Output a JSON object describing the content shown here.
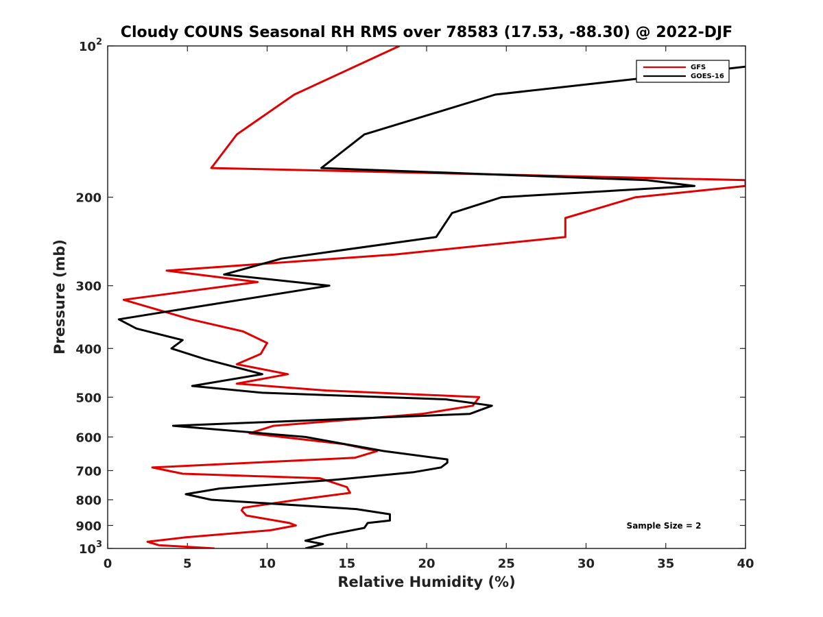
{
  "chart_data": {
    "type": "line",
    "title": "Cloudy COUNS Seasonal RH RMS over 78583 (17.53, -88.30) @ 2022-DJF",
    "xlabel": "Relative Humidity (%)",
    "ylabel": "Pressure (mb)",
    "xlim": [
      0,
      40
    ],
    "ylim": [
      100,
      1000
    ],
    "yscale": "log",
    "yreversed": true,
    "x_ticks": [
      0,
      5,
      10,
      15,
      20,
      25,
      30,
      35,
      40
    ],
    "y_ticks": [
      {
        "value": 100,
        "base": "10",
        "exp": "2"
      },
      {
        "value": 200,
        "label": "200"
      },
      {
        "value": 300,
        "label": "300"
      },
      {
        "value": 400,
        "label": "400"
      },
      {
        "value": 500,
        "label": "500"
      },
      {
        "value": 600,
        "label": "600"
      },
      {
        "value": 700,
        "label": "700"
      },
      {
        "value": 800,
        "label": "800"
      },
      {
        "value": 900,
        "label": "900"
      },
      {
        "value": 1000,
        "base": "10",
        "exp": "3"
      }
    ],
    "annotation": "Sample Size = 2",
    "legend_position": "top-right",
    "series": [
      {
        "name": "GFS",
        "color": "#e00000",
        "points": [
          [
            18.3,
            100
          ],
          [
            11.7,
            125
          ],
          [
            8.1,
            150
          ],
          [
            6.5,
            175
          ],
          [
            40.0,
            185
          ],
          [
            40.0,
            190
          ],
          [
            40.0,
            190
          ],
          [
            33.1,
            200
          ],
          [
            28.7,
            220
          ],
          [
            28.7,
            240
          ],
          [
            18.0,
            260
          ],
          [
            3.7,
            280
          ],
          [
            9.4,
            295
          ],
          [
            1.0,
            320
          ],
          [
            5.2,
            350
          ],
          [
            8.5,
            370
          ],
          [
            10.0,
            390
          ],
          [
            9.6,
            410
          ],
          [
            8.1,
            430
          ],
          [
            11.3,
            450
          ],
          [
            8.1,
            470
          ],
          [
            13.7,
            485
          ],
          [
            23.3,
            500
          ],
          [
            22.9,
            520
          ],
          [
            19.7,
            540
          ],
          [
            10.4,
            570
          ],
          [
            8.9,
            590
          ],
          [
            14.8,
            620
          ],
          [
            16.9,
            640
          ],
          [
            15.5,
            660
          ],
          [
            2.8,
            690
          ],
          [
            4.7,
            710
          ],
          [
            13.3,
            725
          ],
          [
            15.0,
            755
          ],
          [
            15.2,
            775
          ],
          [
            11.9,
            800
          ],
          [
            8.5,
            830
          ],
          [
            8.4,
            840
          ],
          [
            8.7,
            860
          ],
          [
            11.4,
            890
          ],
          [
            11.8,
            900
          ],
          [
            10.2,
            920
          ],
          [
            4.9,
            950
          ],
          [
            2.5,
            970
          ],
          [
            3.2,
            985
          ],
          [
            6.7,
            1000
          ]
        ]
      },
      {
        "name": "GOES-16",
        "color": "#000000",
        "points": [
          [
            40.0,
            110
          ],
          [
            24.3,
            125
          ],
          [
            16.1,
            150
          ],
          [
            13.4,
            175
          ],
          [
            33.8,
            185
          ],
          [
            36.8,
            190
          ],
          [
            24.7,
            200
          ],
          [
            21.6,
            215
          ],
          [
            20.6,
            240
          ],
          [
            10.9,
            265
          ],
          [
            7.3,
            285
          ],
          [
            13.9,
            300
          ],
          [
            5.7,
            330
          ],
          [
            0.7,
            350
          ],
          [
            1.8,
            365
          ],
          [
            4.7,
            385
          ],
          [
            4.0,
            400
          ],
          [
            6.1,
            420
          ],
          [
            9.7,
            450
          ],
          [
            5.3,
            475
          ],
          [
            9.7,
            490
          ],
          [
            21.2,
            505
          ],
          [
            24.1,
            520
          ],
          [
            22.7,
            540
          ],
          [
            4.1,
            570
          ],
          [
            12.4,
            600
          ],
          [
            17.3,
            640
          ],
          [
            21.3,
            665
          ],
          [
            21.3,
            675
          ],
          [
            20.9,
            690
          ],
          [
            19.2,
            705
          ],
          [
            14.3,
            730
          ],
          [
            7.0,
            760
          ],
          [
            4.9,
            780
          ],
          [
            6.5,
            800
          ],
          [
            15.6,
            835
          ],
          [
            17.7,
            855
          ],
          [
            17.7,
            880
          ],
          [
            16.3,
            890
          ],
          [
            16.1,
            910
          ],
          [
            13.8,
            940
          ],
          [
            12.4,
            965
          ],
          [
            13.5,
            980
          ],
          [
            12.4,
            1000
          ]
        ]
      }
    ]
  }
}
